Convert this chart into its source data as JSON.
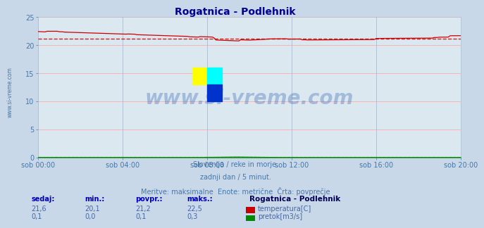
{
  "title": "Rogatnica - Podlehnik",
  "title_color": "#000099",
  "bg_color": "#c8d8e8",
  "plot_bg_color": "#dce8f0",
  "grid_color_major": "#b0c0d0",
  "grid_color_minor": "#ffb0b0",
  "x_labels": [
    "sob 00:00",
    "sob 04:00",
    "sob 08:00",
    "sob 12:00",
    "sob 16:00",
    "sob 20:00"
  ],
  "x_ticks_idx": [
    0,
    48,
    96,
    144,
    192,
    240
  ],
  "n_points": 241,
  "temp_mean": 21.2,
  "temp_min": 20.1,
  "temp_max": 22.5,
  "temp_current": 21.6,
  "flow_mean": 0.1,
  "flow_min": 0.0,
  "flow_max": 0.3,
  "flow_current": 0.1,
  "ylim": [
    0,
    25
  ],
  "yticks": [
    0,
    5,
    10,
    15,
    20,
    25
  ],
  "temp_line_color": "#cc0000",
  "flow_line_color": "#008800",
  "flow_avg_color": "#00cc00",
  "watermark": "www.si-vreme.com",
  "watermark_color": "#2255aa",
  "sub_text1": "Slovenija / reke in morje.",
  "sub_text2": "zadnji dan / 5 minut.",
  "sub_text3": "Meritve: maksimalne  Enote: metrične  Črta: povprečje",
  "sub_text_color": "#4477aa",
  "footer_label_color": "#0000bb",
  "footer_value_color": "#4466aa",
  "footer_header_color": "#000055",
  "ylabel_text": "www.si-vreme.com",
  "ylabel_color": "#4477aa",
  "temp_vals": [
    "21,6",
    "20,1",
    "21,2",
    "22,5"
  ],
  "flow_vals": [
    "0,1",
    "0,0",
    "0,1",
    "0,3"
  ],
  "headers": [
    "sedaj:",
    "min.:",
    "povpr.:",
    "maks.:"
  ],
  "station_name": "Rogatnica - Podlehnik",
  "legend_temp": "temperatura[C]",
  "legend_flow": "pretok[m3/s]"
}
